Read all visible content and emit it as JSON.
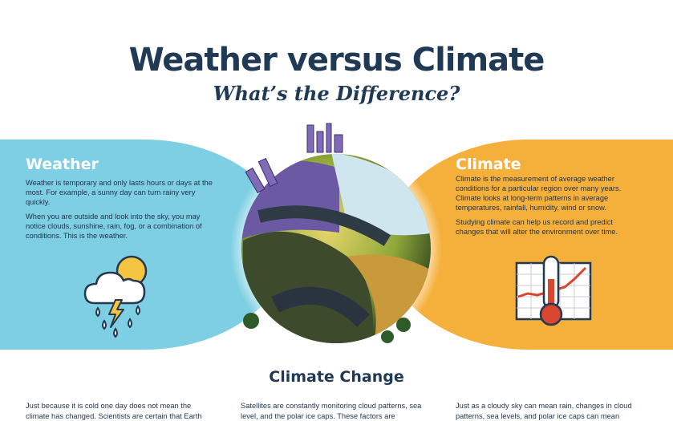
{
  "header": {
    "title": "Weather versus Climate",
    "subtitle": "What’s the Difference?"
  },
  "weather": {
    "heading": "Weather",
    "paragraphs": [
      "Weather is temporary and only lasts hours or days at the most. For example, a sunny day can turn rainy very quickly.",
      "When you are outside and look into the sky, you may notice clouds, sunshine, rain, fog, or a combination of conditions. This is the weather."
    ],
    "icon": "cloud-sun-rain-lightning-icon",
    "color": "#7ecfe3"
  },
  "climate": {
    "heading": "Climate",
    "paragraphs": [
      "Climate is the measurement of average weather conditions for a particular region over many years. Climate looks at long-term patterns in average temperatures, rainfall, humidity, wind or snow.",
      "Studying climate can help us record and predict changes that will alter the environment over time."
    ],
    "icon": "thermometer-chart-icon",
    "color": "#f5b03c"
  },
  "center_image": "illustrated-earth-globe-icon",
  "climate_change": {
    "heading": "Climate Change",
    "columns": [
      "Just because it is cold one day does not mean the climate has changed. Scientists are certain that Earth",
      "Satellites are constantly monitoring cloud patterns, sea level, and the polar ice caps. These factors are",
      "Just as a cloudy sky can mean rain, changes in cloud patterns, sea levels, and polar ice caps can mean"
    ]
  }
}
